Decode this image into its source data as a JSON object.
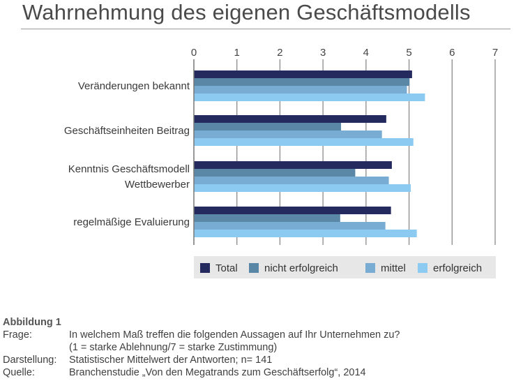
{
  "page_title": "Wahrnehmung des eigenen Geschäftsmodells",
  "chart_data": {
    "type": "bar",
    "orientation": "horizontal",
    "xlim": [
      0,
      7
    ],
    "ticks": [
      "0",
      "1",
      "2",
      "3",
      "4",
      "5",
      "6",
      "7"
    ],
    "categories": [
      [
        "Veränderungen bekannt"
      ],
      [
        "Geschäftseinheiten Beitrag"
      ],
      [
        "Kenntnis Geschäftsmodell",
        "Wettbewerber"
      ],
      [
        "regelmäßige Evaluierung"
      ]
    ],
    "series": [
      {
        "name": "Total",
        "color": "#242a5e",
        "values": [
          5.07,
          4.47,
          4.6,
          4.58
        ]
      },
      {
        "name": "nicht erfolgreich",
        "color": "#5a87a6",
        "values": [
          5.01,
          3.42,
          3.75,
          3.4
        ]
      },
      {
        "name": "mittel",
        "color": "#78acd3",
        "values": [
          4.95,
          4.37,
          4.53,
          4.45
        ]
      },
      {
        "name": "erfolgreich",
        "color": "#8dcaf1",
        "values": [
          5.37,
          5.1,
          5.04,
          5.18
        ]
      }
    ],
    "grid": true,
    "legend_position": "bottom"
  },
  "footer": {
    "caption": "Abbildung 1",
    "rows": [
      {
        "label": "Frage:",
        "text": "In welchem Maß treffen die folgenden Aussagen auf Ihr Unternehmen zu?"
      },
      {
        "label": "",
        "text": "(1 = starke Ablehnung/7 = starke Zustimmung)"
      },
      {
        "label": "Darstellung:",
        "text": "Statistischer Mittelwert der Antworten; n= 141"
      },
      {
        "label": "Quelle:",
        "text": "Branchenstudie „Von den Megatrands zum Geschäftserfolg“, 2014"
      }
    ]
  }
}
